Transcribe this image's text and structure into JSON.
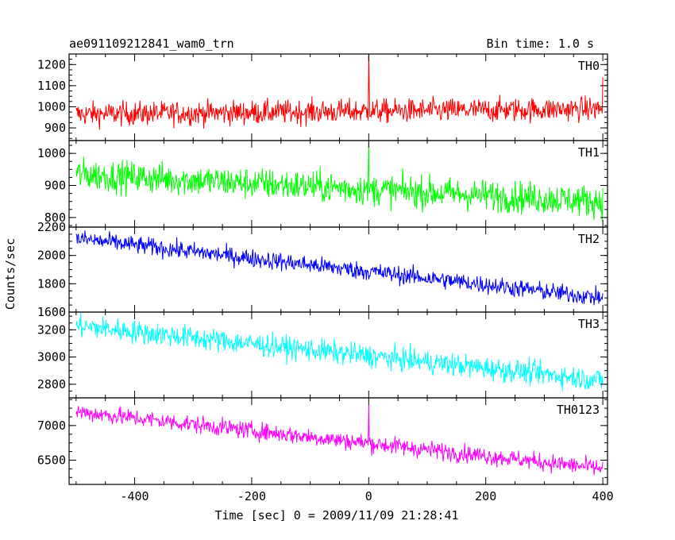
{
  "chart_data": {
    "type": "line",
    "title": "ae091109212841_wam0_trn",
    "subtitle": "Bin time: 1.0 s",
    "xlabel": "Time [sec] 0 = 2009/11/09 21:28:41",
    "ylabel": "Counts/sec",
    "xlim": [
      -512,
      408
    ],
    "xticks": [
      -400,
      -200,
      0,
      200,
      400
    ],
    "bin_time_s": 1.0,
    "panels": [
      {
        "name": "TH0",
        "color": "#ff0000",
        "ylim": [
          840,
          1250
        ],
        "yticks": [
          900,
          1000,
          1100,
          1200
        ],
        "start": 965,
        "end": 990,
        "noise": 40,
        "spikes": [
          [
            0,
            1250
          ],
          [
            1,
            1080
          ],
          [
            400,
            1140
          ]
        ]
      },
      {
        "name": "TH1",
        "color": "#00ff00",
        "ylim": [
          770,
          1040
        ],
        "yticks": [
          800,
          900,
          1000
        ],
        "start": 935,
        "end": 850,
        "noise": 35,
        "spikes": [
          [
            0,
            1040
          ]
        ]
      },
      {
        "name": "TH2",
        "color": "#0000ff",
        "ylim": [
          1600,
          2200
        ],
        "yticks": [
          1600,
          1800,
          2000,
          2200
        ],
        "start": 2120,
        "end": 1700,
        "noise": 45,
        "spikes": []
      },
      {
        "name": "TH3",
        "color": "#00ffff",
        "ylim": [
          2700,
          3330
        ],
        "yticks": [
          2800,
          3000,
          3200
        ],
        "start": 3230,
        "end": 2830,
        "noise": 60,
        "spikes": []
      },
      {
        "name": "TH0123",
        "color": "#ff00ff",
        "ylim": [
          6150,
          7400
        ],
        "yticks": [
          6500,
          7000
        ],
        "start": 7200,
        "end": 6380,
        "noise": 90,
        "spikes": [
          [
            0,
            7300
          ]
        ]
      }
    ]
  }
}
